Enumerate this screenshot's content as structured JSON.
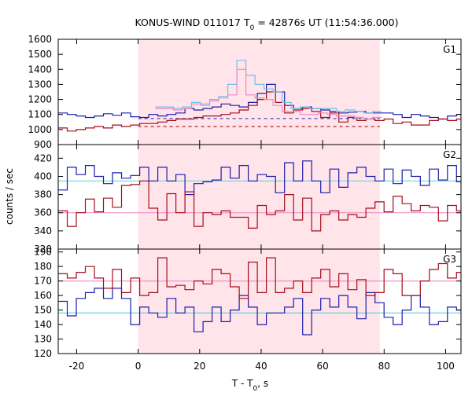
{
  "chart_data": {
    "type": "line",
    "title_main": "KONUS-WIND 011017 T",
    "title_sub": "0",
    "title_rest": " = 42876s UT (11:54:36.000)",
    "xlabel_main": "T - T",
    "xlabel_sub": "0",
    "xlabel_rest": ", s",
    "ylabel": "counts / sec",
    "xlim": [
      -26,
      105
    ],
    "xticks": [
      -20,
      0,
      20,
      40,
      60,
      80,
      100
    ],
    "xtick_labels": [
      "-20",
      "0",
      "20",
      "40",
      "60",
      "80",
      "100"
    ],
    "bin_width": 2.944,
    "x_start": -26,
    "highlight_region": [
      0,
      78.6
    ],
    "colors": {
      "highlight": "#ffe4e9",
      "blue": "#1c1cb0",
      "red": "#a60c1a",
      "light_blue": "#6ec0ec",
      "pink": "#ee88c4",
      "cyan_bg": "#5ad0d8",
      "pink_bg": "#ee88c4",
      "dashed_blue": "#2020c0",
      "dashed_red": "#a60c1a"
    },
    "panels": [
      {
        "label": "G1",
        "ylim": [
          900,
          1600
        ],
        "yticks": [
          900,
          1000,
          1100,
          1200,
          1300,
          1400,
          1500,
          1600
        ],
        "ytick_labels": [
          "900",
          "1000",
          "1100",
          "1200",
          "1300",
          "1400",
          "1500",
          "1600"
        ],
        "bg_levels": [
          {
            "name": "G1 blue background",
            "value": 1073,
            "color": "#2020c0",
            "dashed": true,
            "from": 0,
            "to": 78.6
          },
          {
            "name": "G1 red background",
            "value": 1020,
            "color": "#a60c1a",
            "dashed": true,
            "from": 0,
            "to": 78.6
          }
        ],
        "series": [
          {
            "name": "G1 blue",
            "color": "#1c1cb0",
            "start": -26,
            "values": [
              1110,
              1100,
              1090,
              1080,
              1090,
              1105,
              1095,
              1110,
              1085,
              1080,
              1100,
              1090,
              1100,
              1110,
              1140,
              1130,
              1140,
              1150,
              1170,
              1160,
              1150,
              1180,
              1240,
              1300,
              1250,
              1160,
              1140,
              1150,
              1140,
              1130,
              1120,
              1110,
              1115,
              1120,
              1110,
              1110,
              1110,
              1100,
              1080,
              1100,
              1090,
              1080,
              1070,
              1090,
              1100
            ]
          },
          {
            "name": "G1 red",
            "color": "#a60c1a",
            "start": -26,
            "values": [
              1010,
              990,
              1000,
              1010,
              1020,
              1010,
              1030,
              1020,
              1030,
              1040,
              1040,
              1050,
              1060,
              1070,
              1070,
              1080,
              1090,
              1090,
              1100,
              1110,
              1130,
              1160,
              1200,
              1250,
              1180,
              1110,
              1130,
              1140,
              1120,
              1080,
              1110,
              1050,
              1080,
              1060,
              1070,
              1060,
              1070,
              1040,
              1050,
              1030,
              1030,
              1060,
              1070,
              1060,
              1070
            ]
          },
          {
            "name": "G1 summed",
            "color": "#6ec0ec",
            "start": 5.6,
            "values": [
              1150,
              1150,
              1140,
              1150,
              1180,
              1170,
              1200,
              1220,
              1300,
              1460,
              1360,
              1300,
              1270,
              1250,
              1180,
              1140,
              1150,
              1140,
              1140,
              1140,
              1120,
              1130,
              1120,
              1110,
              1120
            ]
          },
          {
            "name": "G1 summed pink",
            "color": "#ee88c4",
            "start": 5.6,
            "values": [
              1140,
              1140,
              1130,
              1140,
              1170,
              1160,
              1190,
              1210,
              1230,
              1400,
              1230,
              1210,
              1200,
              1160,
              1120,
              1120,
              1100,
              1100,
              1110,
              1100,
              1090,
              1090,
              1080,
              1070,
              1080
            ]
          }
        ]
      },
      {
        "label": "G2",
        "ylim": [
          320,
          435
        ],
        "yticks": [
          320,
          340,
          360,
          380,
          400,
          420
        ],
        "ytick_labels": [
          "320",
          "340",
          "360",
          "380",
          "400",
          "420"
        ],
        "bg_levels": [
          {
            "name": "G2 cyan background",
            "value": 395,
            "color": "#5ad0d8",
            "dashed": false,
            "from": -26,
            "to": 105
          },
          {
            "name": "G2 pink background",
            "value": 360,
            "color": "#ee88c4",
            "dashed": false,
            "from": -26,
            "to": 105
          }
        ],
        "series": [
          {
            "name": "G2 blue",
            "color": "#1c1cb0",
            "start": -26,
            "values": [
              385,
              410,
              402,
              412,
              400,
              392,
              404,
              398,
              401,
              410,
              395,
              410,
              395,
              402,
              380,
              392,
              394,
              396,
              410,
              398,
              412,
              395,
              402,
              400,
              382,
              415,
              395,
              417,
              395,
              382,
              408,
              388,
              404,
              410,
              400,
              395,
              408,
              392,
              407,
              400,
              390,
              408,
              396,
              412,
              394
            ]
          },
          {
            "name": "G2 red",
            "color": "#a60c1a",
            "start": -26,
            "values": [
              362,
              345,
              360,
              375,
              361,
              376,
              366,
              390,
              391,
              395,
              365,
              352,
              381,
              360,
              383,
              345,
              360,
              358,
              362,
              355,
              355,
              343,
              368,
              358,
              362,
              380,
              352,
              376,
              340,
              358,
              362,
              352,
              358,
              355,
              365,
              372,
              361,
              378,
              370,
              362,
              368,
              366,
              351,
              368,
              362
            ]
          }
        ]
      },
      {
        "label": "G3",
        "ylim": [
          120,
          192
        ],
        "yticks": [
          120,
          130,
          140,
          150,
          160,
          170,
          180,
          190
        ],
        "ytick_labels": [
          "120",
          "130",
          "140",
          "150",
          "160",
          "170",
          "180",
          "190"
        ],
        "bg_levels": [
          {
            "name": "G3 pink background",
            "value": 170,
            "color": "#ee88c4",
            "dashed": false,
            "from": -26,
            "to": 105
          },
          {
            "name": "G3 cyan background",
            "value": 148,
            "color": "#5ad0d8",
            "dashed": false,
            "from": -26,
            "to": 105
          }
        ],
        "series": [
          {
            "name": "G3 blue",
            "color": "#1c1cb0",
            "start": -26,
            "values": [
              156,
              146,
              158,
              162,
              165,
              158,
              165,
              158,
              140,
              152,
              148,
              145,
              158,
              148,
              152,
              135,
              142,
              152,
              142,
              150,
              160,
              152,
              140,
              148,
              148,
              152,
              158,
              133,
              150,
              158,
              152,
              160,
              152,
              144,
              162,
              155,
              145,
              140,
              150,
              160,
              152,
              140,
              142,
              152,
              150
            ]
          },
          {
            "name": "G3 red",
            "color": "#a60c1a",
            "start": -26,
            "values": [
              175,
              172,
              176,
              180,
              172,
              165,
              178,
              162,
              172,
              160,
              162,
              186,
              166,
              167,
              164,
              170,
              168,
              178,
              175,
              166,
              158,
              183,
              162,
              186,
              162,
              165,
              170,
              162,
              172,
              178,
              166,
              175,
              164,
              171,
              160,
              162,
              178,
              175,
              160,
              160,
              170,
              178,
              182,
              172,
              176
            ]
          }
        ]
      }
    ]
  }
}
